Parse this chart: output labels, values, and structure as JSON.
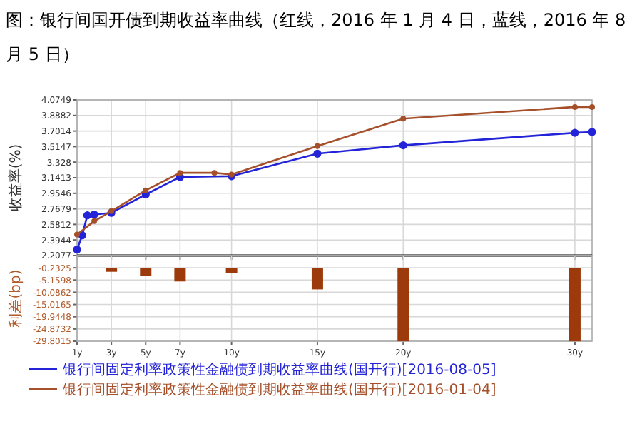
{
  "chart_data": [
    {
      "type": "line",
      "title": "图：银行间国开债到期收益率曲线（红线，2016 年 1 月 4 日，蓝线，2016 年 8 月 5 日）",
      "ylabel": "收益率(%)",
      "xlim": [
        1,
        31
      ],
      "xticks": [
        1,
        3,
        5,
        7,
        10,
        15,
        20,
        30
      ],
      "ylim": [
        2.2077,
        4.0749
      ],
      "yticks": [
        2.2077,
        2.3944,
        2.5812,
        2.7679,
        2.9546,
        3.1413,
        3.328,
        3.5147,
        3.7014,
        3.8882,
        4.0749
      ],
      "grid": true,
      "legend": "bottom",
      "tick_labels": "y",
      "marker": "circle",
      "series": [
        {
          "name": "银行间固定利率政策性金融债到期收益率曲线(国开行)[2016-08-05]",
          "color": "#2323d8",
          "x": [
            1,
            1.3,
            1.6,
            2,
            3,
            5,
            7,
            10,
            15,
            20,
            30,
            31
          ],
          "values": [
            2.28,
            2.45,
            2.69,
            2.7,
            2.72,
            2.94,
            3.15,
            3.16,
            3.43,
            3.53,
            3.68,
            3.69
          ]
        },
        {
          "name": "银行间固定利率政策性金融债到期收益率曲线(国开行)[2016-01-04]",
          "color": "#a5502a",
          "x": [
            1,
            2,
            3,
            5,
            7,
            9,
            10,
            15,
            20,
            30,
            31
          ],
          "values": [
            2.46,
            2.62,
            2.74,
            2.99,
            3.2,
            3.2,
            3.18,
            3.52,
            3.85,
            3.99,
            3.99
          ]
        }
      ]
    },
    {
      "type": "bar",
      "ylabel": "利差(bp)",
      "xlim": [
        1,
        31
      ],
      "xticks": [
        {
          "value": 1,
          "label": "1y"
        },
        {
          "value": 3,
          "label": "3y"
        },
        {
          "value": 5,
          "label": "5y"
        },
        {
          "value": 7,
          "label": "7y"
        },
        {
          "value": 10,
          "label": "10y"
        },
        {
          "value": 15,
          "label": "15y"
        },
        {
          "value": 20,
          "label": "20y"
        },
        {
          "value": 30,
          "label": "30y"
        }
      ],
      "ylim": [
        -29.8015,
        4.6958
      ],
      "yticks": [
        {
          "value": 4.6958,
          "label": null
        },
        -0.2325,
        -5.1598,
        -10.0862,
        -15.0165,
        -19.9448,
        -24.8732,
        -29.8015
      ],
      "grid": true,
      "color": "#9c3a0c",
      "x": [
        3,
        5,
        7,
        10,
        15,
        20,
        30
      ],
      "base": [
        -0.2325,
        -0.2325,
        -0.2325,
        -0.2325,
        -0.2325,
        -0.2325,
        -0.2325
      ],
      "values": [
        -1.6,
        -3.2,
        -5.5,
        -2.2,
        -8.7,
        -29.6,
        -29.6
      ]
    }
  ]
}
